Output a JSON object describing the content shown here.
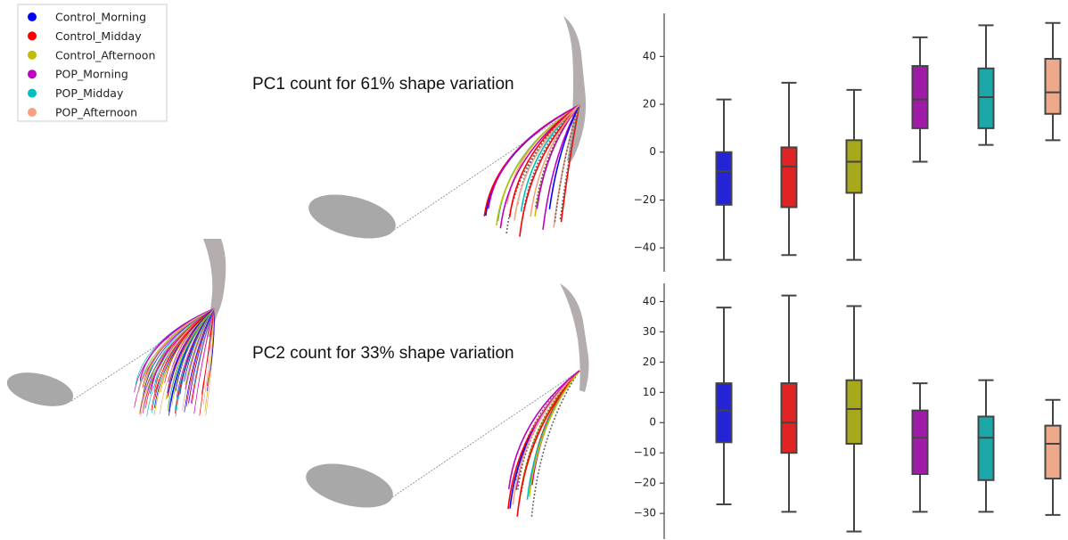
{
  "legend": [
    {
      "name": "Control_Morning",
      "color": "#0000ff"
    },
    {
      "name": "Control_Midday",
      "color": "#ff0000"
    },
    {
      "name": "Control_Afternoon",
      "color": "#bfbf00"
    },
    {
      "name": "POP_Morning",
      "color": "#bf00bf"
    },
    {
      "name": "POP_Midday",
      "color": "#00bfbf"
    },
    {
      "name": "POP_Afternoon",
      "color": "#f5a37f"
    }
  ],
  "chart_data": [
    {
      "type": "box",
      "title": "PC1  count for 61% shape variation",
      "ylim": [
        -50,
        58
      ],
      "yticks": [
        {
          "value": -40,
          "label": "−40"
        },
        {
          "value": -20,
          "label": "−20"
        },
        0,
        20,
        40
      ],
      "colors": [
        "#2424d6",
        "#e02424",
        "#a8a81c",
        "#a01ca8",
        "#1ca8a8",
        "#eea98a"
      ],
      "boxes": [
        {
          "whislo": -45,
          "q1": -22,
          "med": -8,
          "q3": 0,
          "whishi": 22
        },
        {
          "whislo": -43,
          "q1": -23,
          "med": -6,
          "q3": 2,
          "whishi": 29
        },
        {
          "whislo": -45,
          "q1": -17,
          "med": -4,
          "q3": 5,
          "whishi": 26
        },
        {
          "whislo": -4,
          "q1": 10,
          "med": 22,
          "q3": 36,
          "whishi": 48
        },
        {
          "whislo": 3,
          "q1": 10,
          "med": 23,
          "q3": 35,
          "whishi": 53
        },
        {
          "whislo": 5,
          "q1": 16,
          "med": 25,
          "q3": 39,
          "whishi": 54
        }
      ]
    },
    {
      "type": "box",
      "title": "PC2  count for 33% shape variation",
      "ylim": [
        -38.5,
        46
      ],
      "yticks": [
        {
          "value": -30,
          "label": "−30"
        },
        {
          "value": -20,
          "label": "−20"
        },
        {
          "value": -10,
          "label": "−10"
        },
        0,
        10,
        20,
        30,
        40
      ],
      "colors": [
        "#2424d6",
        "#e02424",
        "#a8a81c",
        "#a01ca8",
        "#1ca8a8",
        "#eea98a"
      ],
      "boxes": [
        {
          "whislo": -27,
          "q1": -6.5,
          "med": 4,
          "q3": 13,
          "whishi": 38
        },
        {
          "whislo": -29.5,
          "q1": -10,
          "med": 0,
          "q3": 13,
          "whishi": 42
        },
        {
          "whislo": -36,
          "q1": -7,
          "med": 4.5,
          "q3": 14,
          "whishi": 38.5
        },
        {
          "whislo": -29.5,
          "q1": -17,
          "med": -5,
          "q3": 4,
          "whishi": 13
        },
        {
          "whislo": -29.5,
          "q1": -19,
          "med": -5,
          "q3": 2,
          "whishi": 14
        },
        {
          "whislo": -30.5,
          "q1": -18.5,
          "med": -7,
          "q3": -1,
          "whishi": 7.5
        }
      ]
    }
  ]
}
